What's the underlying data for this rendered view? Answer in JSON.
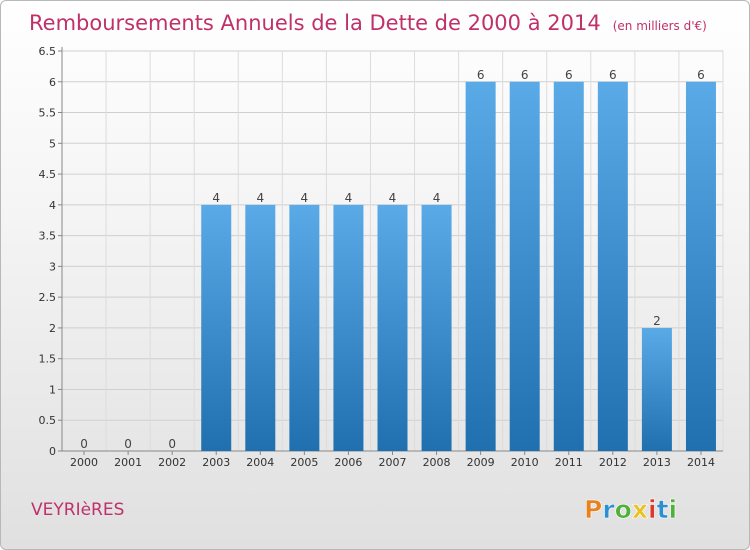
{
  "chart_data": {
    "type": "bar",
    "title": "Remboursements Annuels de la Dette de 2000 à 2014",
    "unit": "(en milliers d'€)",
    "categories": [
      "2000",
      "2001",
      "2002",
      "2003",
      "2004",
      "2005",
      "2006",
      "2007",
      "2008",
      "2009",
      "2010",
      "2011",
      "2012",
      "2013",
      "2014"
    ],
    "values": [
      0,
      0,
      0,
      4,
      4,
      4,
      4,
      4,
      4,
      6,
      6,
      6,
      6,
      2,
      6
    ],
    "value_labels": [
      "0",
      "0",
      "0",
      "4",
      "4",
      "4",
      "4",
      "4",
      "4",
      "6",
      "6",
      "6",
      "6",
      "2",
      "6"
    ],
    "yticks": [
      "0",
      "0.5",
      "1",
      "1.5",
      "2",
      "2.5",
      "3",
      "3.5",
      "4",
      "4.5",
      "5",
      "5.5",
      "6",
      "6.5"
    ],
    "ylim": [
      0,
      6.5
    ],
    "xlabel": "",
    "ylabel": "",
    "bar_color_light": "#5aaae8",
    "bar_color_dark": "#2070b0",
    "title_color": "#c0306a"
  },
  "footer": {
    "place": "VEYRIèRES",
    "brand": "Proxiti",
    "brand_colors": [
      "#e8821e",
      "#2e8fd0",
      "#4fb13a",
      "#e8c21e",
      "#d93a2e",
      "#2e8fd0",
      "#4fb13a"
    ]
  }
}
